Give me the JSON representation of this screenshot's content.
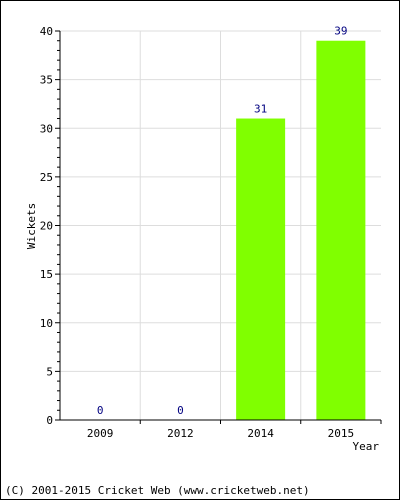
{
  "chart_data": {
    "type": "bar",
    "categories": [
      "2009",
      "2012",
      "2014",
      "2015"
    ],
    "values": [
      0,
      0,
      31,
      39
    ],
    "data_labels": [
      "0",
      "0",
      "31",
      "39"
    ],
    "xlabel": "Year",
    "ylabel": "Wickets",
    "ylim": [
      0,
      40
    ],
    "yticks": [
      "0",
      "5",
      "10",
      "15",
      "20",
      "25",
      "30",
      "35",
      "40"
    ],
    "grid": true,
    "bar_color": "#80ff00",
    "label_color": "#000080"
  },
  "footer": {
    "copyright": "(C) 2001-2015 Cricket Web (www.cricketweb.net)"
  }
}
